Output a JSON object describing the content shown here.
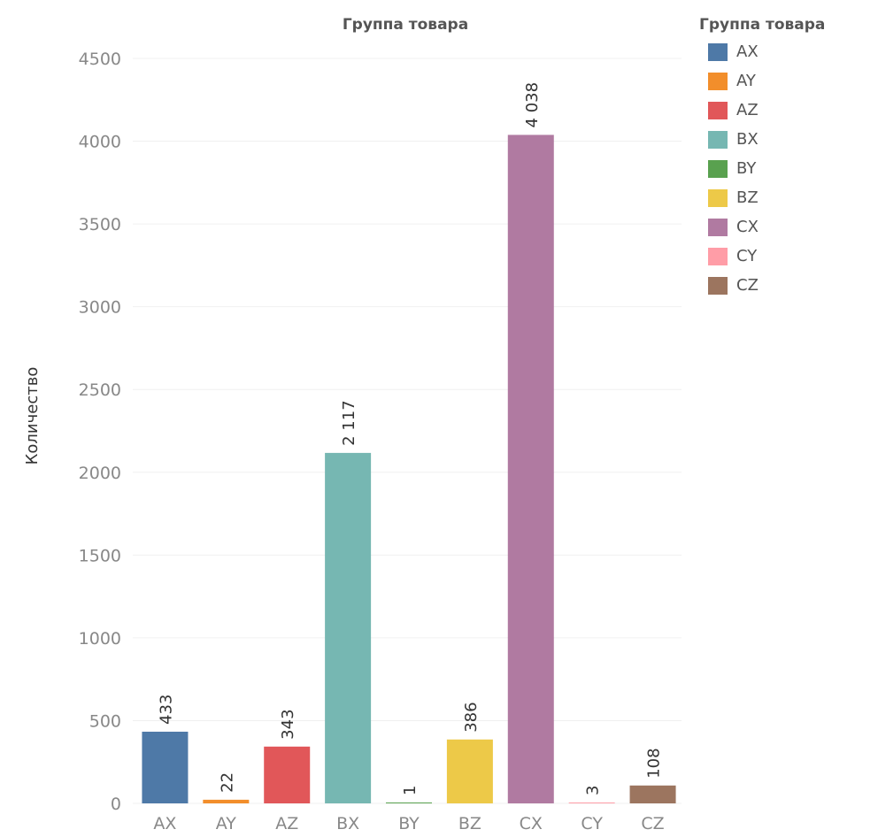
{
  "chart_data": {
    "type": "bar",
    "title": "Группа товара",
    "xlabel": "",
    "ylabel": "Количество",
    "ylim": [
      0,
      4500
    ],
    "yticks": [
      0,
      500,
      1000,
      1500,
      2000,
      2500,
      3000,
      3500,
      4000,
      4500
    ],
    "grid": true,
    "categories": [
      "AX",
      "AY",
      "AZ",
      "BX",
      "BY",
      "BZ",
      "CX",
      "CY",
      "CZ"
    ],
    "values": [
      433,
      22,
      343,
      2117,
      1,
      386,
      4038,
      3,
      108
    ],
    "value_labels": [
      "433",
      "22",
      "343",
      "2 117",
      "1",
      "386",
      "4 038",
      "3",
      "108"
    ],
    "colors": [
      "#4e79a7",
      "#f28e2b",
      "#e15759",
      "#76b7b2",
      "#59a14f",
      "#edc948",
      "#b07aa1",
      "#ff9da7",
      "#9c755f"
    ],
    "legend": {
      "title": "Группа товара",
      "placement": "top-right",
      "entries": [
        "AX",
        "AY",
        "AZ",
        "BX",
        "BY",
        "BZ",
        "CX",
        "CY",
        "CZ"
      ]
    }
  }
}
